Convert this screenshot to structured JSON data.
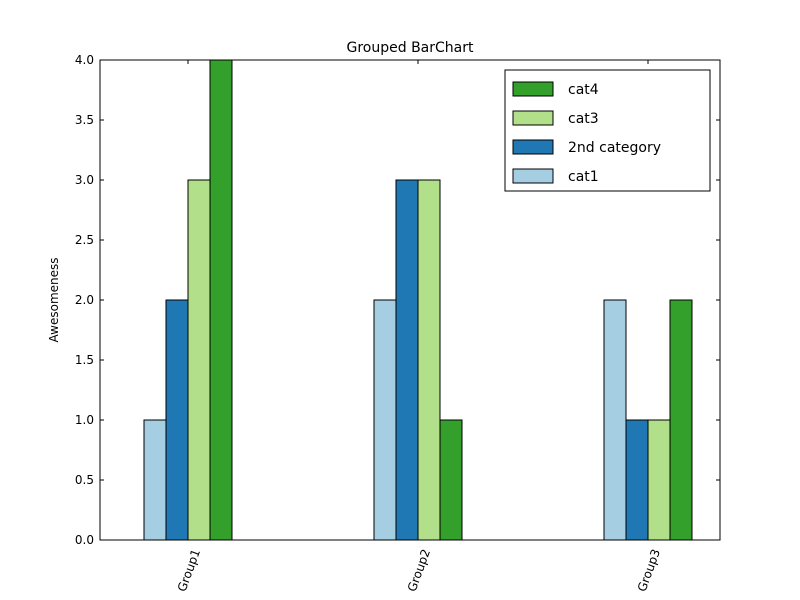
{
  "chart_data": {
    "type": "bar",
    "title": "Grouped BarChart",
    "xlabel": "",
    "ylabel": "Awesomeness",
    "categories": [
      "Group1",
      "Group2",
      "Group3"
    ],
    "series": [
      {
        "name": "cat1",
        "color": "#a6cee3",
        "values": [
          1,
          2,
          2
        ]
      },
      {
        "name": "2nd category",
        "color": "#1f78b4",
        "values": [
          2,
          3,
          1
        ]
      },
      {
        "name": "cat3",
        "color": "#b2df8a",
        "values": [
          3,
          3,
          1
        ]
      },
      {
        "name": "cat4",
        "color": "#33a02c",
        "values": [
          4,
          1,
          2
        ]
      }
    ],
    "ylim": [
      0,
      4.0
    ],
    "yticks": [
      "0.0",
      "0.5",
      "1.0",
      "1.5",
      "2.0",
      "2.5",
      "3.0",
      "3.5",
      "4.0"
    ],
    "grid": false,
    "legend_position": "top-right",
    "legend_order": [
      "cat4",
      "cat3",
      "2nd category",
      "cat1"
    ]
  }
}
